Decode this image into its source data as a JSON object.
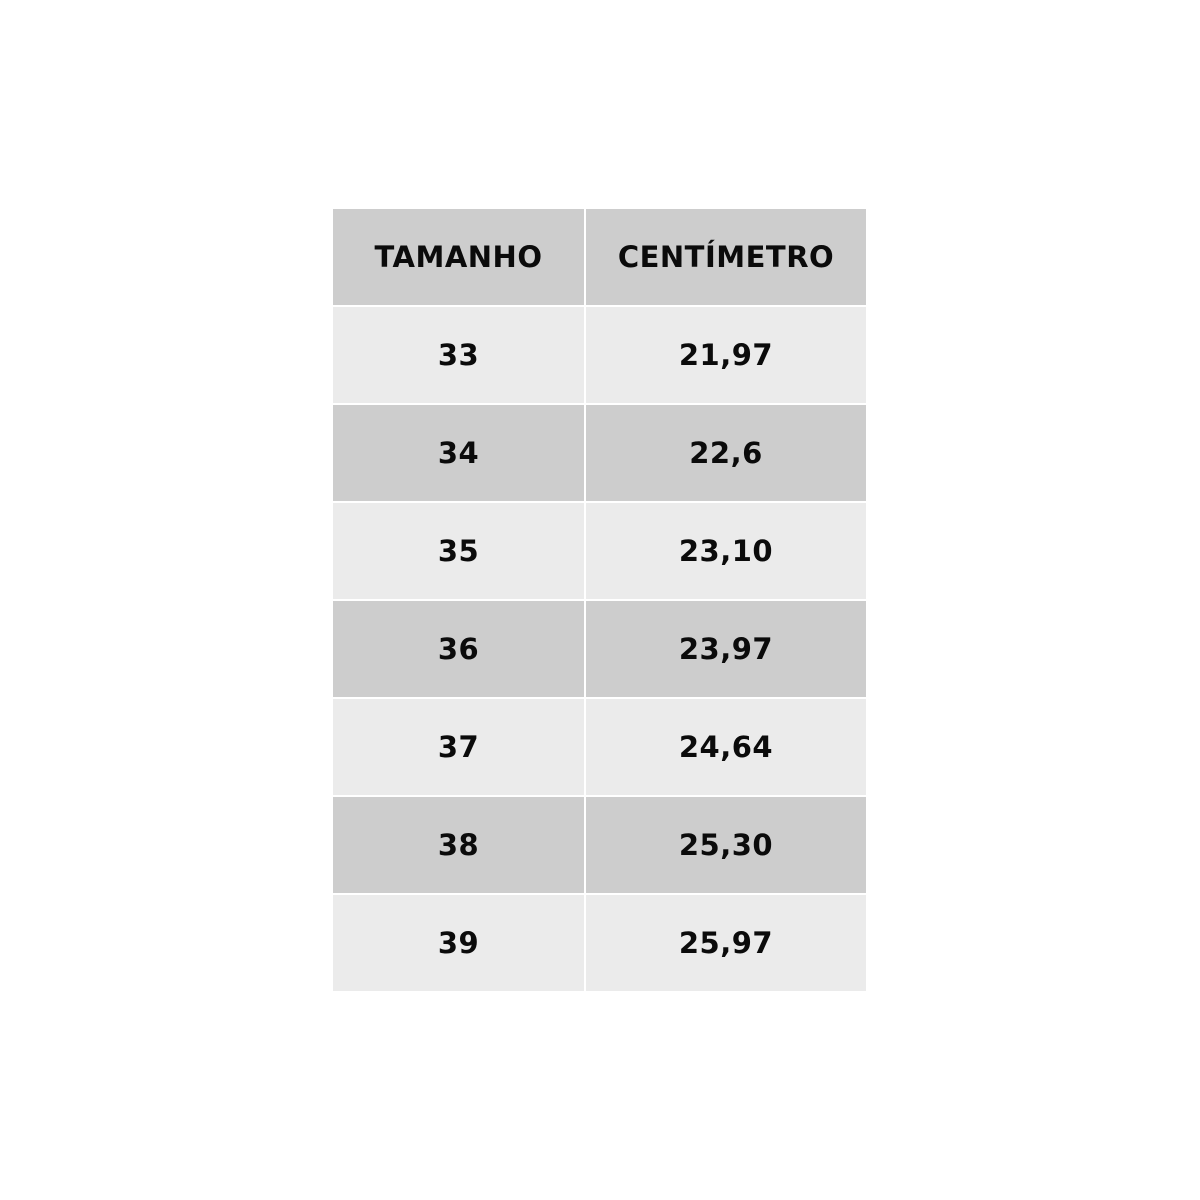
{
  "table": {
    "headers": [
      "TAMANHO",
      "CENTÍMETRO"
    ],
    "rows": [
      [
        "33",
        "21,97"
      ],
      [
        "34",
        "22,6"
      ],
      [
        "35",
        "23,10"
      ],
      [
        "36",
        "23,97"
      ],
      [
        "37",
        "24,64"
      ],
      [
        "38",
        "25,30"
      ],
      [
        "39",
        "25,97"
      ]
    ]
  },
  "colors": {
    "header_bg": "#cdcdcd",
    "row_dark": "#cdcdcd",
    "row_light": "#ebebeb",
    "text": "#0b0b0b"
  }
}
